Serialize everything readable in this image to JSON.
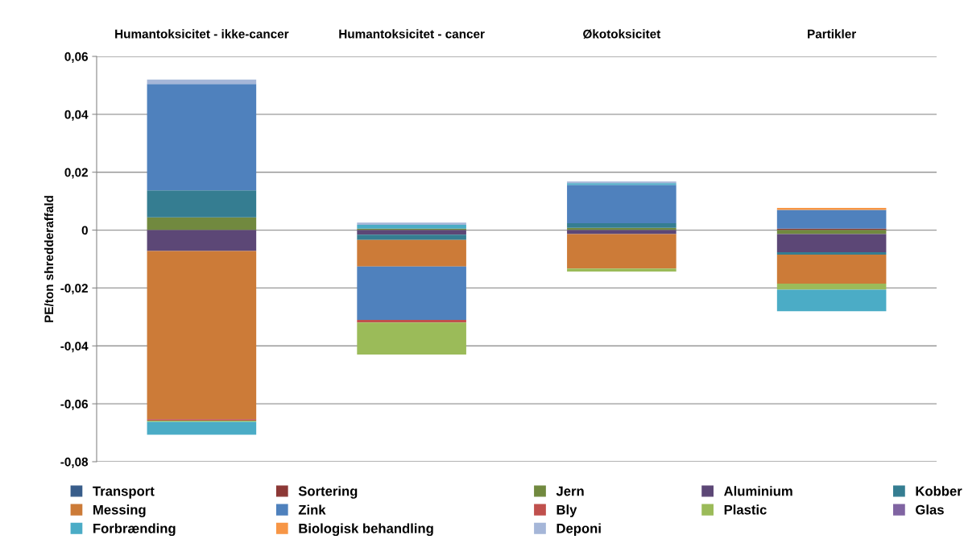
{
  "chart_data": {
    "type": "bar",
    "stacked": true,
    "ylabel": "PE/ton shredderaffald",
    "categories": [
      "Humantoksicitet - ikke-cancer",
      "Humantoksicitet - cancer",
      "Økotoksicitet",
      "Partikler"
    ],
    "ylim": [
      -0.08,
      0.06
    ],
    "yticks": [
      {
        "value": -0.08,
        "label": "-0,08"
      },
      {
        "value": -0.06,
        "label": "-0,06"
      },
      {
        "value": -0.04,
        "label": "-0,04"
      },
      {
        "value": -0.02,
        "label": "-0,02"
      },
      {
        "value": 0,
        "label": "0"
      },
      {
        "value": 0.02,
        "label": "0,02"
      },
      {
        "value": 0.04,
        "label": "0,04"
      },
      {
        "value": 0.06,
        "label": "0,06"
      }
    ],
    "grid": "y",
    "legend": "bottom",
    "series": [
      {
        "name": "Transport",
        "color": "#385d8a",
        "values": [
          0,
          0,
          0,
          0
        ]
      },
      {
        "name": "Sortering",
        "color": "#8c3836",
        "values": [
          0,
          0,
          0,
          0.0005
        ]
      },
      {
        "name": "Jern",
        "color": "#71893f",
        "values": [
          0.0044,
          0.0005,
          0.0008,
          -0.0014
        ]
      },
      {
        "name": "Aluminium",
        "color": "#5c4776",
        "values": [
          -0.0072,
          -0.0016,
          -0.0014,
          -0.0062
        ]
      },
      {
        "name": "Kobber",
        "color": "#357d91",
        "values": [
          0.0093,
          -0.0018,
          0.0016,
          -0.0009
        ]
      },
      {
        "name": "Messing",
        "color": "#cc7b38",
        "values": [
          -0.0581,
          -0.0092,
          -0.0119,
          -0.01
        ]
      },
      {
        "name": "Zink",
        "color": "#4f81bd",
        "values": [
          0.0368,
          -0.0184,
          0.0132,
          0.0065
        ]
      },
      {
        "name": "Bly",
        "color": "#c0504d",
        "values": [
          -0.0005,
          -0.0009,
          0,
          0
        ]
      },
      {
        "name": "Plastic",
        "color": "#9bbb59",
        "values": [
          -0.0004,
          -0.0111,
          -0.001,
          -0.0021
        ]
      },
      {
        "name": "Glas",
        "color": "#8064a2",
        "values": [
          0,
          0,
          0,
          0
        ]
      },
      {
        "name": "Forbrænding",
        "color": "#4bacc6",
        "values": [
          -0.0045,
          0.0013,
          0.0006,
          -0.0074
        ]
      },
      {
        "name": "Biologisk behandling",
        "color": "#f79646",
        "values": [
          0,
          0,
          0,
          0.0007
        ]
      },
      {
        "name": "Deponi",
        "color": "#a5b6d8",
        "values": [
          0.0015,
          0.0008,
          0.0006,
          0
        ]
      }
    ]
  }
}
